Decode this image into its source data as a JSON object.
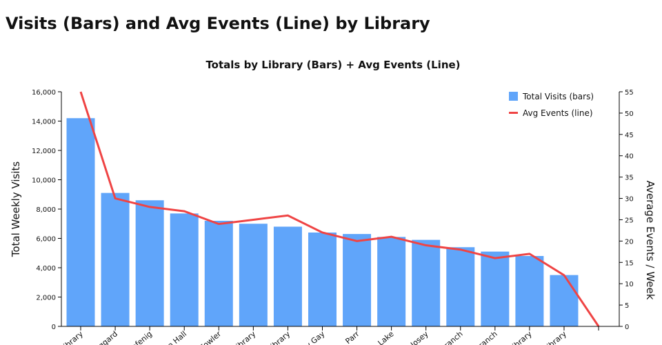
{
  "page_title": "Visits (Bars) and Avg Events (Line) by Library",
  "chart_data": {
    "type": "bar+line",
    "title": "Totals by Library (Bars) + Avg Events (Line)",
    "ylabel": "Total Weekly Visits",
    "y2label": "Average Events / Week",
    "ylim": [
      0,
      16000
    ],
    "y2lim": [
      0,
      55
    ],
    "yticks": [
      0,
      2000,
      4000,
      6000,
      8000,
      10000,
      12000,
      14000,
      16000
    ],
    "y2ticks": [
      0,
      5,
      10,
      15,
      20,
      25,
      30,
      35,
      40,
      45,
      50,
      55
    ],
    "categories": [
      "ibrary",
      "ggard",
      "ofenig",
      "n Hall",
      "Fowler",
      "ibrary",
      "ibrary",
      "y Gay",
      ". Parr",
      "h Lake",
      ". Josey",
      "Branch",
      "Branch",
      "ibrary",
      "ibrary",
      ""
    ],
    "series": [
      {
        "name": "Total Visits (bars)",
        "kind": "bar",
        "color": "#60a5fa",
        "values": [
          14200,
          9100,
          8600,
          7700,
          7200,
          7000,
          6800,
          6400,
          6300,
          6100,
          5900,
          5400,
          5100,
          4800,
          3500,
          0
        ]
      },
      {
        "name": "Avg Events (line)",
        "kind": "line",
        "color": "#ef4444",
        "values": [
          55,
          30,
          28,
          27,
          24,
          25,
          26,
          22,
          20,
          21,
          19,
          18,
          16,
          17,
          12,
          0
        ]
      }
    ],
    "legend": "top-right",
    "grid": false
  }
}
